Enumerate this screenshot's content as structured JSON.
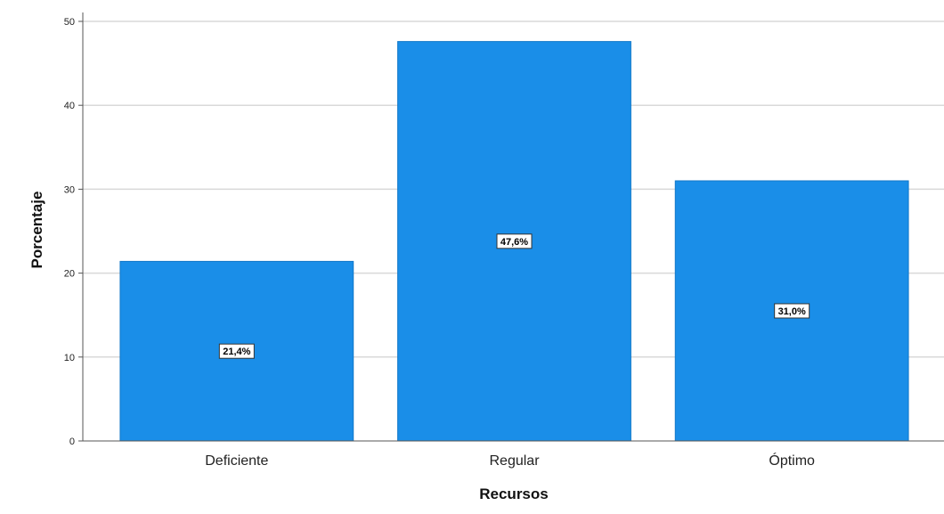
{
  "chart_data": {
    "type": "bar",
    "categories": [
      "Deficiente",
      "Regular",
      "Óptimo"
    ],
    "values": [
      21.4,
      47.6,
      31.0
    ],
    "data_labels": [
      "21,4%",
      "47,6%",
      "31,0%"
    ],
    "title": "",
    "xlabel": "Recursos",
    "ylabel": "Porcentaje",
    "ylim": [
      0,
      50
    ],
    "yticks": [
      0,
      10,
      20,
      30,
      40,
      50
    ],
    "grid": true,
    "legend": "none",
    "colors": {
      "bar": "#1a8ee8",
      "bar_edge": "#1278c9",
      "grid": "#d9d9d9",
      "axis": "#555555"
    }
  }
}
